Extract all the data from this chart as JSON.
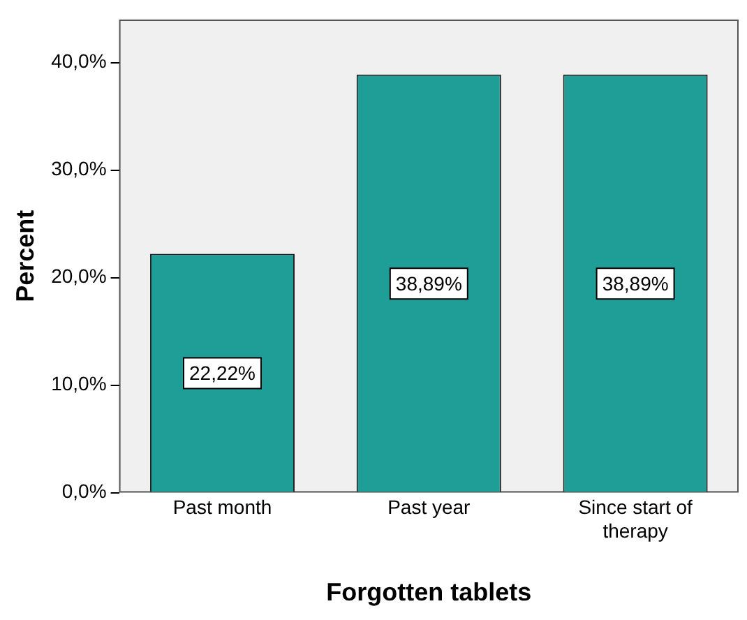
{
  "chart_data": {
    "type": "bar",
    "xlabel": "Forgotten tablets",
    "ylabel": "Percent",
    "categories": [
      "Past month",
      "Past year",
      "Since start of therapy"
    ],
    "values": [
      22.22,
      38.89,
      38.89
    ],
    "color": "#1f9e98",
    "value_labels": [
      "22,22%",
      "38,89%",
      "38,89%"
    ],
    "ylim": [
      0,
      44
    ],
    "yticks": [
      {
        "value": 0,
        "label": "0,0%"
      },
      {
        "value": 10,
        "label": "10,0%"
      },
      {
        "value": 20,
        "label": "20,0%"
      },
      {
        "value": 30,
        "label": "30,0%"
      },
      {
        "value": 40,
        "label": "40,0%"
      }
    ],
    "grid": false,
    "legend": false
  }
}
